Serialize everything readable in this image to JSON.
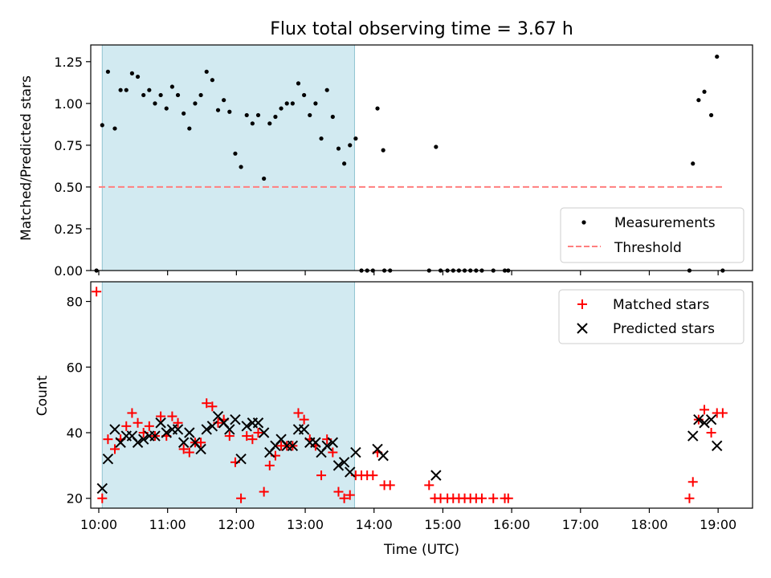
{
  "figure": {
    "title": "Flux total observing time = 3.67 h"
  },
  "chart_data": [
    {
      "type": "scatter",
      "panel": "top",
      "title": "Flux total observing time = 3.67 h",
      "xlabel": "",
      "ylabel": "Matched/Predicted stars",
      "xlim": [
        "09:53",
        "19:30"
      ],
      "ylim": [
        0,
        1.35
      ],
      "yticks": [
        "0.00",
        "0.25",
        "0.50",
        "0.75",
        "1.00",
        "1.25"
      ],
      "shaded_region": {
        "from": "10:03",
        "to": "13:43",
        "color": "#add8e6"
      },
      "legend_position": "lower-right",
      "series": [
        {
          "name": "Measurements",
          "marker": "dot",
          "color": "#000000",
          "points": [
            [
              "09:58",
              0.0
            ],
            [
              "10:03",
              0.87
            ],
            [
              "10:08",
              1.19
            ],
            [
              "10:14",
              0.85
            ],
            [
              "10:19",
              1.08
            ],
            [
              "10:24",
              1.08
            ],
            [
              "10:29",
              1.18
            ],
            [
              "10:34",
              1.16
            ],
            [
              "10:39",
              1.05
            ],
            [
              "10:44",
              1.08
            ],
            [
              "10:49",
              1.0
            ],
            [
              "10:54",
              1.05
            ],
            [
              "10:59",
              0.97
            ],
            [
              "11:04",
              1.1
            ],
            [
              "11:09",
              1.05
            ],
            [
              "11:14",
              0.94
            ],
            [
              "11:19",
              0.85
            ],
            [
              "11:24",
              1.0
            ],
            [
              "11:29",
              1.05
            ],
            [
              "11:34",
              1.19
            ],
            [
              "11:39",
              1.14
            ],
            [
              "11:44",
              0.96
            ],
            [
              "11:49",
              1.02
            ],
            [
              "11:54",
              0.95
            ],
            [
              "11:59",
              0.7
            ],
            [
              "12:04",
              0.62
            ],
            [
              "12:09",
              0.93
            ],
            [
              "12:14",
              0.88
            ],
            [
              "12:19",
              0.93
            ],
            [
              "12:24",
              0.55
            ],
            [
              "12:29",
              0.88
            ],
            [
              "12:34",
              0.92
            ],
            [
              "12:39",
              0.97
            ],
            [
              "12:44",
              1.0
            ],
            [
              "12:49",
              1.0
            ],
            [
              "12:54",
              1.12
            ],
            [
              "12:59",
              1.05
            ],
            [
              "13:04",
              0.93
            ],
            [
              "13:09",
              1.0
            ],
            [
              "13:14",
              0.79
            ],
            [
              "13:19",
              1.08
            ],
            [
              "13:24",
              0.92
            ],
            [
              "13:29",
              0.73
            ],
            [
              "13:34",
              0.64
            ],
            [
              "13:39",
              0.75
            ],
            [
              "13:44",
              0.79
            ],
            [
              "13:49",
              0.0
            ],
            [
              "13:54",
              0.0
            ],
            [
              "13:59",
              0.0
            ],
            [
              "14:03",
              0.97
            ],
            [
              "14:09",
              0.0
            ],
            [
              "14:08",
              0.72
            ],
            [
              "14:14",
              0.0
            ],
            [
              "14:48",
              0.0
            ],
            [
              "14:54",
              0.74
            ],
            [
              "14:58",
              0.0
            ],
            [
              "15:04",
              0.0
            ],
            [
              "15:09",
              0.0
            ],
            [
              "15:14",
              0.0
            ],
            [
              "15:19",
              0.0
            ],
            [
              "15:24",
              0.0
            ],
            [
              "15:29",
              0.0
            ],
            [
              "15:34",
              0.0
            ],
            [
              "15:44",
              0.0
            ],
            [
              "15:54",
              0.0
            ],
            [
              "15:57",
              0.0
            ],
            [
              "18:35",
              0.0
            ],
            [
              "18:38",
              0.64
            ],
            [
              "18:43",
              1.02
            ],
            [
              "18:48",
              1.07
            ],
            [
              "18:54",
              0.93
            ],
            [
              "18:59",
              1.28
            ],
            [
              "19:04",
              0.0
            ]
          ]
        },
        {
          "name": "Threshold",
          "style": "dashed",
          "color": "#ff7f7f",
          "points": [
            [
              "10:00",
              0.5
            ],
            [
              "19:05",
              0.5
            ]
          ]
        }
      ]
    },
    {
      "type": "scatter",
      "panel": "bottom",
      "xlabel": "Time (UTC)",
      "ylabel": "Count",
      "xlim": [
        "09:53",
        "19:30"
      ],
      "ylim": [
        17,
        86
      ],
      "xticks": [
        "10:00",
        "11:00",
        "12:00",
        "13:00",
        "14:00",
        "15:00",
        "16:00",
        "17:00",
        "18:00",
        "19:00"
      ],
      "yticks": [
        "20",
        "40",
        "60",
        "80"
      ],
      "shaded_region": {
        "from": "10:03",
        "to": "13:43",
        "color": "#add8e6"
      },
      "legend_position": "upper-right",
      "series": [
        {
          "name": "Matched stars",
          "marker": "plus",
          "color": "#ff0000",
          "points": [
            [
              "09:58",
              83
            ],
            [
              "10:03",
              20
            ],
            [
              "10:08",
              38
            ],
            [
              "10:14",
              35
            ],
            [
              "10:19",
              38
            ],
            [
              "10:24",
              42
            ],
            [
              "10:29",
              46
            ],
            [
              "10:34",
              43
            ],
            [
              "10:39",
              40
            ],
            [
              "10:44",
              42
            ],
            [
              "10:49",
              39
            ],
            [
              "10:54",
              45
            ],
            [
              "10:59",
              39
            ],
            [
              "11:04",
              45
            ],
            [
              "11:09",
              43
            ],
            [
              "11:14",
              35
            ],
            [
              "11:19",
              34
            ],
            [
              "11:24",
              37
            ],
            [
              "11:29",
              37
            ],
            [
              "11:34",
              49
            ],
            [
              "11:39",
              48
            ],
            [
              "11:44",
              43
            ],
            [
              "11:49",
              44
            ],
            [
              "11:54",
              39
            ],
            [
              "11:59",
              31
            ],
            [
              "12:04",
              20
            ],
            [
              "12:09",
              39
            ],
            [
              "12:14",
              38
            ],
            [
              "12:19",
              40
            ],
            [
              "12:24",
              22
            ],
            [
              "12:29",
              30
            ],
            [
              "12:34",
              33
            ],
            [
              "12:39",
              36
            ],
            [
              "12:44",
              36
            ],
            [
              "12:49",
              36
            ],
            [
              "12:54",
              46
            ],
            [
              "12:59",
              44
            ],
            [
              "13:04",
              38
            ],
            [
              "13:09",
              36
            ],
            [
              "13:14",
              27
            ],
            [
              "13:19",
              38
            ],
            [
              "13:24",
              34
            ],
            [
              "13:29",
              22
            ],
            [
              "13:34",
              20
            ],
            [
              "13:39",
              21
            ],
            [
              "13:44",
              27
            ],
            [
              "13:49",
              27
            ],
            [
              "13:54",
              27
            ],
            [
              "13:59",
              27
            ],
            [
              "14:03",
              34
            ],
            [
              "14:09",
              24
            ],
            [
              "14:14",
              24
            ],
            [
              "14:48",
              24
            ],
            [
              "14:53",
              20
            ],
            [
              "14:58",
              20
            ],
            [
              "15:04",
              20
            ],
            [
              "15:09",
              20
            ],
            [
              "15:14",
              20
            ],
            [
              "15:19",
              20
            ],
            [
              "15:24",
              20
            ],
            [
              "15:29",
              20
            ],
            [
              "15:34",
              20
            ],
            [
              "15:44",
              20
            ],
            [
              "15:54",
              20
            ],
            [
              "15:57",
              20
            ],
            [
              "18:35",
              20
            ],
            [
              "18:38",
              25
            ],
            [
              "18:43",
              44
            ],
            [
              "18:48",
              47
            ],
            [
              "18:54",
              40
            ],
            [
              "18:59",
              46
            ],
            [
              "19:04",
              46
            ]
          ]
        },
        {
          "name": "Predicted stars",
          "marker": "x",
          "color": "#000000",
          "points": [
            [
              "10:03",
              23
            ],
            [
              "10:08",
              32
            ],
            [
              "10:14",
              41
            ],
            [
              "10:19",
              37
            ],
            [
              "10:24",
              39
            ],
            [
              "10:29",
              39
            ],
            [
              "10:34",
              37
            ],
            [
              "10:39",
              38
            ],
            [
              "10:44",
              39
            ],
            [
              "10:49",
              39
            ],
            [
              "10:54",
              43
            ],
            [
              "10:59",
              40
            ],
            [
              "11:04",
              41
            ],
            [
              "11:09",
              41
            ],
            [
              "11:14",
              37
            ],
            [
              "11:19",
              40
            ],
            [
              "11:24",
              37
            ],
            [
              "11:29",
              35
            ],
            [
              "11:34",
              41
            ],
            [
              "11:39",
              42
            ],
            [
              "11:44",
              45
            ],
            [
              "11:49",
              43
            ],
            [
              "11:54",
              41
            ],
            [
              "11:59",
              44
            ],
            [
              "12:04",
              32
            ],
            [
              "12:09",
              42
            ],
            [
              "12:14",
              43
            ],
            [
              "12:19",
              43
            ],
            [
              "12:24",
              40
            ],
            [
              "12:29",
              34
            ],
            [
              "12:34",
              36
            ],
            [
              "12:39",
              38
            ],
            [
              "12:44",
              36
            ],
            [
              "12:49",
              36
            ],
            [
              "12:54",
              41
            ],
            [
              "12:59",
              41
            ],
            [
              "13:04",
              37
            ],
            [
              "13:09",
              37
            ],
            [
              "13:14",
              34
            ],
            [
              "13:19",
              36
            ],
            [
              "13:24",
              37
            ],
            [
              "13:29",
              30
            ],
            [
              "13:34",
              31
            ],
            [
              "13:39",
              28
            ],
            [
              "13:44",
              34
            ],
            [
              "14:03",
              35
            ],
            [
              "14:08",
              33
            ],
            [
              "14:54",
              27
            ],
            [
              "18:38",
              39
            ],
            [
              "18:43",
              44
            ],
            [
              "18:48",
              43
            ],
            [
              "18:54",
              44
            ],
            [
              "18:59",
              36
            ]
          ]
        }
      ]
    }
  ]
}
